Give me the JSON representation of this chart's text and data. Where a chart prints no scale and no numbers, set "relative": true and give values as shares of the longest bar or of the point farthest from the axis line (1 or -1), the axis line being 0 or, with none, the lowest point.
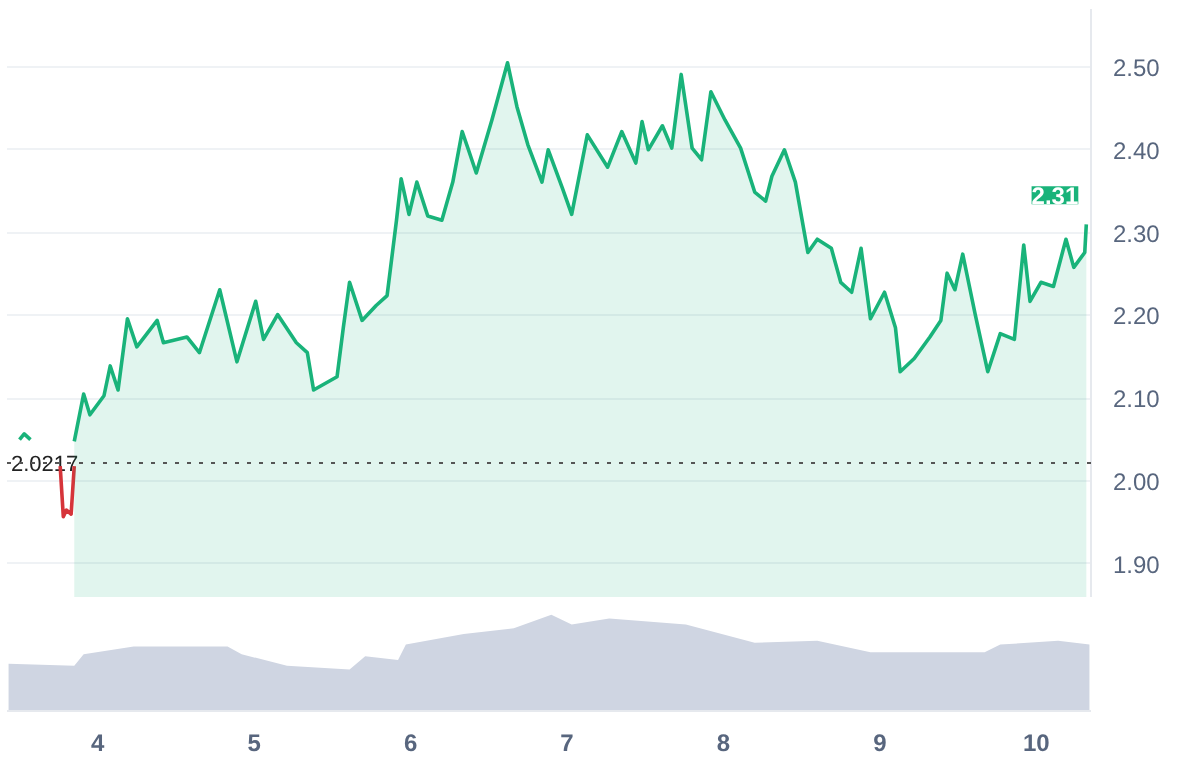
{
  "chart_data": [
    {
      "type": "line",
      "xlim": [
        3.42,
        10.35
      ],
      "ylim": [
        1.86,
        2.57
      ],
      "yticks": [
        {
          "value": 1.9,
          "label": "1.90"
        },
        {
          "value": 2.0,
          "label": "2.00"
        },
        {
          "value": 2.1,
          "label": "2.10"
        },
        {
          "value": 2.2,
          "label": "2.20"
        },
        {
          "value": 2.3,
          "label": "2.30"
        },
        {
          "value": 2.4,
          "label": "2.40"
        },
        {
          "value": 2.5,
          "label": "2.50"
        }
      ],
      "grid": "y",
      "tick_labels": "y",
      "ref_lines": [
        {
          "axis": "y",
          "value": 2.0217,
          "label": "2.0217",
          "color": "#555555",
          "line_style": "dotted"
        }
      ],
      "annotations": [
        {
          "text": "2.31",
          "x": 10.32,
          "y": 2.31
        }
      ],
      "series": [
        {
          "type": "line",
          "color": "#19b37a",
          "x": [
            3.5,
            3.53,
            3.57
          ],
          "values": [
            2.05,
            2.057,
            2.05
          ]
        },
        {
          "type": "line",
          "color": "#d6343a",
          "x": [
            3.76,
            3.78,
            3.8,
            3.83,
            3.85
          ],
          "values": [
            2.018,
            1.957,
            1.965,
            1.96,
            2.018
          ]
        },
        {
          "type": "area",
          "color": "#19b37a",
          "x": [
            3.85,
            3.91,
            3.95,
            4.04,
            4.08,
            4.13,
            4.19,
            4.25,
            4.38,
            4.42,
            4.57,
            4.65,
            4.78,
            4.89,
            5.01,
            5.06,
            5.15,
            5.27,
            5.34,
            5.38,
            5.53,
            5.57,
            5.61,
            5.69,
            5.78,
            5.85,
            5.91,
            5.94,
            5.99,
            6.04,
            6.11,
            6.2,
            6.27,
            6.33,
            6.37,
            6.42,
            6.52,
            6.62,
            6.68,
            6.75,
            6.84,
            6.88,
            6.97,
            7.03,
            7.13,
            7.26,
            7.35,
            7.44,
            7.48,
            7.52,
            7.61,
            7.67,
            7.73,
            7.8,
            7.86,
            7.92,
            8.01,
            8.11,
            8.2,
            8.27,
            8.31,
            8.39,
            8.46,
            8.54,
            8.6,
            8.69,
            8.75,
            8.82,
            8.88,
            8.94,
            9.03,
            9.1,
            9.13,
            9.22,
            9.32,
            9.39,
            9.43,
            9.48,
            9.53,
            9.61,
            9.69,
            9.77,
            9.86,
            9.92,
            9.96,
            10.03,
            10.11,
            10.19,
            10.24,
            10.31,
            10.32
          ],
          "values": [
            2.048,
            2.105,
            2.08,
            2.103,
            2.139,
            2.11,
            2.196,
            2.162,
            2.194,
            2.167,
            2.174,
            2.155,
            2.231,
            2.144,
            2.217,
            2.171,
            2.201,
            2.167,
            2.155,
            2.11,
            2.126,
            2.185,
            2.24,
            2.194,
            2.212,
            2.224,
            2.315,
            2.365,
            2.322,
            2.361,
            2.32,
            2.315,
            2.361,
            2.422,
            2.4,
            2.372,
            2.436,
            2.505,
            2.452,
            2.406,
            2.361,
            2.4,
            2.354,
            2.322,
            2.418,
            2.379,
            2.422,
            2.384,
            2.434,
            2.4,
            2.429,
            2.402,
            2.491,
            2.402,
            2.388,
            2.47,
            2.436,
            2.402,
            2.349,
            2.338,
            2.368,
            2.4,
            2.361,
            2.276,
            2.292,
            2.281,
            2.24,
            2.228,
            2.281,
            2.196,
            2.228,
            2.185,
            2.132,
            2.148,
            2.174,
            2.194,
            2.251,
            2.231,
            2.274,
            2.201,
            2.132,
            2.178,
            2.171,
            2.285,
            2.217,
            2.24,
            2.235,
            2.292,
            2.258,
            2.276,
            2.31
          ]
        }
      ]
    },
    {
      "type": "area",
      "relative": true,
      "xlim": [
        3.42,
        10.35
      ],
      "xticks": [
        4,
        5,
        6,
        7,
        8,
        9,
        10
      ],
      "grid": false,
      "tick_labels": "x",
      "series": [
        {
          "color": "#cfd5e2",
          "x": [
            3.43,
            3.85,
            3.91,
            4.23,
            4.83,
            4.92,
            5.21,
            5.61,
            5.71,
            5.92,
            5.97,
            6.34,
            6.66,
            6.9,
            7.03,
            7.27,
            7.76,
            8.2,
            8.6,
            8.94,
            9.67,
            9.77,
            10.14,
            10.34
          ],
          "values": [
            0.49,
            0.47,
            0.59,
            0.67,
            0.67,
            0.59,
            0.47,
            0.43,
            0.57,
            0.53,
            0.69,
            0.8,
            0.86,
            1,
            0.9,
            0.96,
            0.9,
            0.71,
            0.73,
            0.61,
            0.61,
            0.69,
            0.73,
            0.69
          ]
        }
      ]
    }
  ]
}
